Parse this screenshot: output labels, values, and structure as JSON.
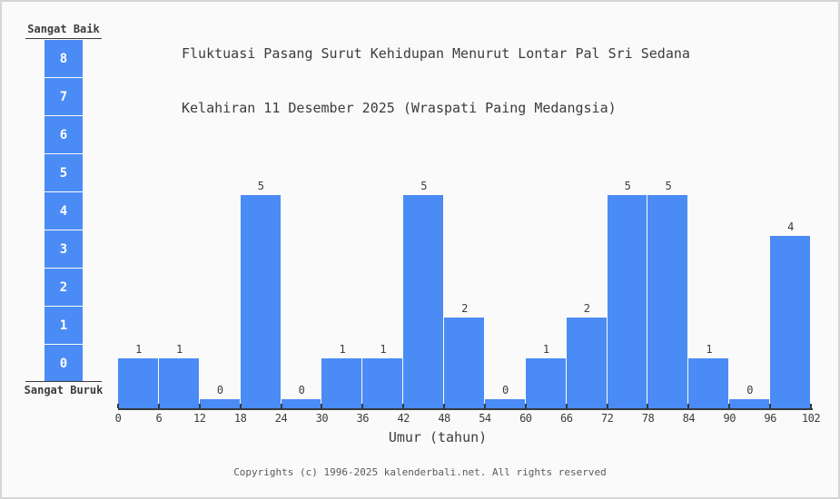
{
  "page": {
    "background": "#fafafa",
    "border_color": "#d6d6d6"
  },
  "title": {
    "line1": "Fluktuasi Pasang Surut Kehidupan Menurut Lontar Pal Sri Sedana",
    "line2": "Kelahiran 11 Desember 2025 (Wraspati Paing Medangsia)",
    "color": "#3c3c3c"
  },
  "scale": {
    "top_label": "Sangat Baik",
    "bottom_label": "Sangat Buruk",
    "levels": [
      "8",
      "7",
      "6",
      "5",
      "4",
      "3",
      "2",
      "1",
      "0"
    ],
    "box_color": "#4b8bf5",
    "number_color": "#ffffff",
    "line_color": "#3c3c3c"
  },
  "chart_data": {
    "type": "bar",
    "title": "Fluktuasi Pasang Surut Kehidupan Menurut Lontar Pal Sri Sedana Kelahiran 11 Desember 2025 (Wraspati Paing Medangsia)",
    "xlabel": "Umur (tahun)",
    "ylabel": "",
    "x_ticks": [
      0,
      6,
      12,
      18,
      24,
      30,
      36,
      42,
      48,
      54,
      60,
      66,
      72,
      78,
      84,
      90,
      96,
      102
    ],
    "bin_width": 6,
    "x_range": [
      0,
      102
    ],
    "ylim": [
      0,
      8
    ],
    "grid": false,
    "legend_position": "none",
    "categories": [
      "0-6",
      "6-12",
      "12-18",
      "18-24",
      "24-30",
      "30-36",
      "36-42",
      "42-48",
      "48-54",
      "54-60",
      "60-66",
      "66-72",
      "72-78",
      "78-84",
      "84-90",
      "90-96",
      "96-102"
    ],
    "values": [
      1,
      1,
      0,
      5,
      0,
      1,
      1,
      5,
      2,
      0,
      1,
      2,
      5,
      5,
      1,
      0,
      4
    ],
    "bar_labels": [
      "1",
      "1",
      "0",
      "5",
      "0",
      "1",
      "1",
      "5",
      "2",
      "0",
      "1",
      "2",
      "5",
      "5",
      "1",
      "0",
      "4"
    ],
    "bar_color": "#4b8bf5",
    "axis_color": "#333a42",
    "label_color": "#3c3c3c"
  },
  "footer": {
    "copyright": "Copyrights (c) 1996-2025 kalenderbali.net. All rights reserved",
    "color": "#5a5a5a"
  }
}
